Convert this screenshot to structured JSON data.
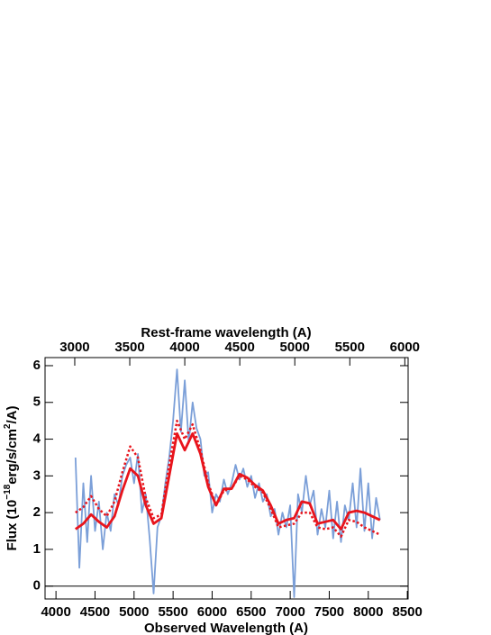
{
  "chart_data": {
    "type": "line",
    "xlabel": "Observed Wavelength (A)",
    "x2label": "Rest-frame wavelength (A)",
    "ylabel": [
      "Flux (10",
      "−18",
      "erg/s/cm",
      "2",
      "/A)"
    ],
    "xlim": [
      3860,
      8510
    ],
    "xticks": [
      4000,
      4500,
      5000,
      5500,
      6000,
      6500,
      7000,
      7500,
      8000,
      8500
    ],
    "x2lim": [
      2730,
      6030
    ],
    "x2ticks": [
      3000,
      3500,
      4000,
      4500,
      5000,
      5500,
      6000
    ],
    "ylim": [
      -0.35,
      6.22
    ],
    "yticks": [
      0,
      1,
      2,
      3,
      4,
      5,
      6
    ],
    "series": [
      {
        "color": "#7b9fd8",
        "style": "solid",
        "x": [
          4250,
          4300,
          4350,
          4400,
          4450,
          4500,
          4550,
          4600,
          4650,
          4700,
          4750,
          4800,
          4850,
          4900,
          4950,
          5000,
          5050,
          5100,
          5150,
          5200,
          5250,
          5300,
          5350,
          5400,
          5450,
          5500,
          5550,
          5600,
          5650,
          5700,
          5750,
          5800,
          5850,
          5900,
          5950,
          6000,
          6050,
          6100,
          6150,
          6200,
          6250,
          6300,
          6350,
          6400,
          6450,
          6500,
          6550,
          6600,
          6650,
          6700,
          6750,
          6800,
          6850,
          6900,
          6950,
          7000,
          7050,
          7100,
          7150,
          7200,
          7250,
          7300,
          7350,
          7400,
          7450,
          7500,
          7550,
          7600,
          7650,
          7700,
          7750,
          7800,
          7850,
          7900,
          7950,
          8000,
          8050,
          8100,
          8150
        ],
        "values": [
          3.5,
          0.5,
          2.8,
          1.2,
          3.0,
          1.5,
          2.3,
          1.0,
          2.0,
          1.5,
          2.5,
          2.2,
          3.0,
          3.3,
          3.5,
          2.8,
          3.6,
          2.0,
          2.5,
          1.3,
          -0.2,
          1.6,
          1.9,
          2.8,
          3.5,
          4.5,
          5.9,
          4.2,
          5.6,
          3.9,
          5.0,
          4.3,
          4.0,
          3.0,
          3.1,
          2.0,
          2.5,
          2.3,
          2.9,
          2.5,
          2.8,
          3.3,
          2.9,
          3.2,
          2.7,
          3.0,
          2.4,
          2.8,
          2.3,
          2.5,
          1.9,
          2.1,
          1.4,
          2.0,
          1.6,
          2.2,
          -0.3,
          2.5,
          2.0,
          3.0,
          2.2,
          2.6,
          1.4,
          2.1,
          1.6,
          2.6,
          1.3,
          2.3,
          1.2,
          2.2,
          1.8,
          2.8,
          1.6,
          3.2,
          1.5,
          2.8,
          1.3,
          2.4,
          1.8
        ]
      },
      {
        "color": "#e8141c",
        "style": "dotted",
        "x": [
          4250,
          4350,
          4450,
          4550,
          4650,
          4750,
          4850,
          4950,
          5050,
          5150,
          5250,
          5350,
          5450,
          5550,
          5650,
          5750,
          5850,
          5950,
          6050,
          6150,
          6250,
          6350,
          6450,
          6550,
          6650,
          6750,
          6850,
          6950,
          7050,
          7150,
          7250,
          7350,
          7450,
          7550,
          7650,
          7750,
          7850,
          7950,
          8050,
          8150
        ],
        "values": [
          2.0,
          2.15,
          2.45,
          2.1,
          1.9,
          2.3,
          3.1,
          3.8,
          3.5,
          2.4,
          1.85,
          1.95,
          3.3,
          4.5,
          4.0,
          4.4,
          3.7,
          2.8,
          2.2,
          2.6,
          2.65,
          3.0,
          2.9,
          2.7,
          2.55,
          2.1,
          1.6,
          1.65,
          1.7,
          2.0,
          2.0,
          1.6,
          1.55,
          1.6,
          1.35,
          1.8,
          1.75,
          1.6,
          1.5,
          1.4
        ]
      },
      {
        "color": "#e8141c",
        "style": "solid",
        "x": [
          4250,
          4350,
          4450,
          4550,
          4650,
          4750,
          4850,
          4950,
          5050,
          5150,
          5250,
          5350,
          5450,
          5550,
          5650,
          5750,
          5850,
          5950,
          6050,
          6150,
          6250,
          6350,
          6450,
          6550,
          6650,
          6750,
          6850,
          6950,
          7050,
          7150,
          7250,
          7350,
          7450,
          7550,
          7650,
          7750,
          7850,
          7950,
          8050,
          8150
        ],
        "values": [
          1.55,
          1.7,
          1.95,
          1.75,
          1.6,
          1.9,
          2.6,
          3.2,
          3.0,
          2.2,
          1.7,
          1.85,
          3.0,
          4.15,
          3.7,
          4.15,
          3.6,
          2.7,
          2.2,
          2.65,
          2.65,
          3.05,
          2.95,
          2.75,
          2.6,
          2.2,
          1.7,
          1.8,
          1.85,
          2.3,
          2.25,
          1.7,
          1.75,
          1.8,
          1.55,
          2.0,
          2.05,
          2.0,
          1.9,
          1.8
        ]
      }
    ]
  }
}
